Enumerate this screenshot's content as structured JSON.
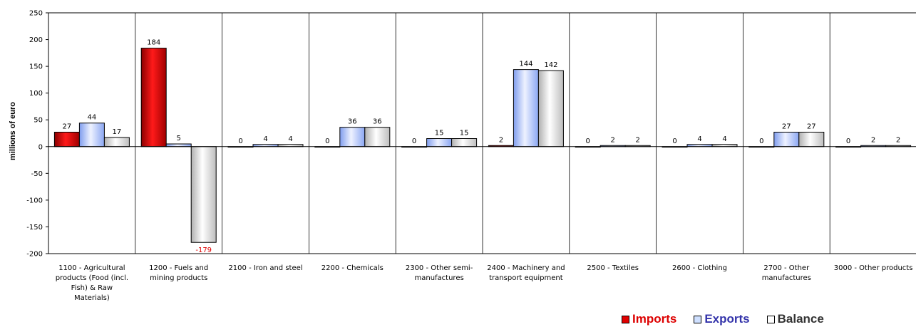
{
  "chart_data": {
    "type": "bar",
    "ylabel": "millions of euro",
    "ylim": [
      -200,
      250
    ],
    "yticks": [
      250,
      200,
      150,
      100,
      50,
      0,
      -50,
      -100,
      -150,
      -200
    ],
    "categories": [
      [
        "1100 - Agricultural",
        "products (Food (incl.",
        "Fish) & Raw",
        "Materials)"
      ],
      [
        "1200 - Fuels and",
        "mining products"
      ],
      [
        "2100 - Iron and steel"
      ],
      [
        "2200 - Chemicals"
      ],
      [
        "2300 - Other semi-",
        "manufactures"
      ],
      [
        "2400 - Machinery and",
        "transport equipment"
      ],
      [
        "2500 - Textiles"
      ],
      [
        "2600 - Clothing"
      ],
      [
        "2700 - Other",
        "manufactures"
      ],
      [
        "3000 - Other products"
      ]
    ],
    "series": [
      {
        "name": "Imports",
        "color": "#d40000",
        "values": [
          27,
          184,
          0,
          0,
          0,
          2,
          0,
          0,
          0,
          0
        ]
      },
      {
        "name": "Exports",
        "color": "#9fb8ff",
        "values": [
          44,
          5,
          4,
          36,
          15,
          144,
          2,
          4,
          27,
          2
        ]
      },
      {
        "name": "Balance",
        "color": "#dcdcdc",
        "values": [
          17,
          -179,
          4,
          36,
          15,
          142,
          2,
          4,
          27,
          2
        ]
      }
    ],
    "grid": true,
    "legend_position": "bottom-right"
  },
  "legend": {
    "imports": {
      "label": "Imports",
      "color": "#dd0000"
    },
    "exports": {
      "label": "Exports",
      "color": "#3333aa"
    },
    "balance": {
      "label": "Balance",
      "color": "#333333"
    }
  }
}
